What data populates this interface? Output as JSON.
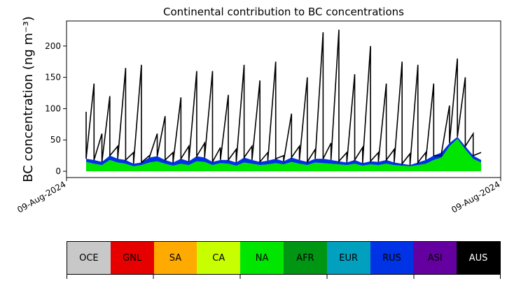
{
  "chart_data": {
    "type": "area",
    "title": "Continental contribution to BC concentrations",
    "ylabel": "BC concentration (ng m⁻³)",
    "xlabel": "",
    "x_tick_labels": [
      "09-Aug-2024",
      "09-Aug-2024"
    ],
    "ylim": [
      -10,
      240
    ],
    "y_ticks": [
      0,
      50,
      100,
      150,
      200
    ],
    "grid": false,
    "x": [
      0.0,
      0.02,
      0.04,
      0.06,
      0.08,
      0.1,
      0.12,
      0.14,
      0.16,
      0.18,
      0.2,
      0.22,
      0.24,
      0.26,
      0.28,
      0.3,
      0.32,
      0.34,
      0.36,
      0.38,
      0.4,
      0.42,
      0.44,
      0.46,
      0.48,
      0.5,
      0.52,
      0.54,
      0.56,
      0.58,
      0.6,
      0.62,
      0.64,
      0.66,
      0.68,
      0.7,
      0.72,
      0.74,
      0.76,
      0.78,
      0.8,
      0.82,
      0.84,
      0.86,
      0.88,
      0.9,
      0.92,
      0.94,
      0.96,
      0.98,
      1.0
    ],
    "series": [
      {
        "name": "NA",
        "color": "#00e600",
        "values": [
          15,
          12,
          10,
          18,
          14,
          12,
          8,
          10,
          14,
          16,
          12,
          9,
          12,
          10,
          16,
          15,
          10,
          13,
          12,
          9,
          14,
          12,
          10,
          11,
          13,
          11,
          15,
          12,
          10,
          14,
          13,
          12,
          11,
          10,
          12,
          9,
          11,
          10,
          12,
          10,
          9,
          8,
          10,
          12,
          18,
          22,
          40,
          52,
          35,
          20,
          14
        ]
      },
      {
        "name": "RUS",
        "color": "#0032e6",
        "values": [
          20,
          18,
          15,
          25,
          20,
          18,
          12,
          14,
          22,
          24,
          18,
          14,
          20,
          16,
          24,
          22,
          15,
          18,
          18,
          14,
          22,
          18,
          15,
          17,
          20,
          16,
          22,
          18,
          15,
          20,
          20,
          18,
          16,
          14,
          18,
          13,
          16,
          15,
          18,
          14,
          12,
          10,
          14,
          18,
          25,
          30,
          45,
          55,
          40,
          25,
          18
        ]
      },
      {
        "name": "AUS",
        "color": "#000000",
        "values": [
          95,
          140,
          60,
          120,
          40,
          165,
          30,
          170,
          25,
          60,
          88,
          30,
          118,
          40,
          160,
          45,
          160,
          38,
          122,
          35,
          170,
          40,
          145,
          30,
          175,
          25,
          92,
          40,
          150,
          35,
          222,
          45,
          226,
          30,
          155,
          38,
          200,
          30,
          140,
          35,
          175,
          28,
          170,
          30,
          140,
          25,
          105,
          180,
          150,
          60,
          30
        ]
      }
    ]
  },
  "legend": {
    "items": [
      {
        "label": "OCE",
        "color": "#c8c8c8",
        "text_color": "#000000"
      },
      {
        "label": "GNL",
        "color": "#e60000",
        "text_color": "#000000"
      },
      {
        "label": "SA",
        "color": "#ffaa00",
        "text_color": "#000000"
      },
      {
        "label": "CA",
        "color": "#c8ff00",
        "text_color": "#000000"
      },
      {
        "label": "NA",
        "color": "#00e600",
        "text_color": "#000000"
      },
      {
        "label": "AFR",
        "color": "#009614",
        "text_color": "#000000"
      },
      {
        "label": "EUR",
        "color": "#00a0be",
        "text_color": "#000000"
      },
      {
        "label": "RUS",
        "color": "#0032e6",
        "text_color": "#000000"
      },
      {
        "label": "ASI",
        "color": "#6400a0",
        "text_color": "#000000"
      },
      {
        "label": "AUS",
        "color": "#000000",
        "text_color": "#ffffff"
      }
    ]
  }
}
